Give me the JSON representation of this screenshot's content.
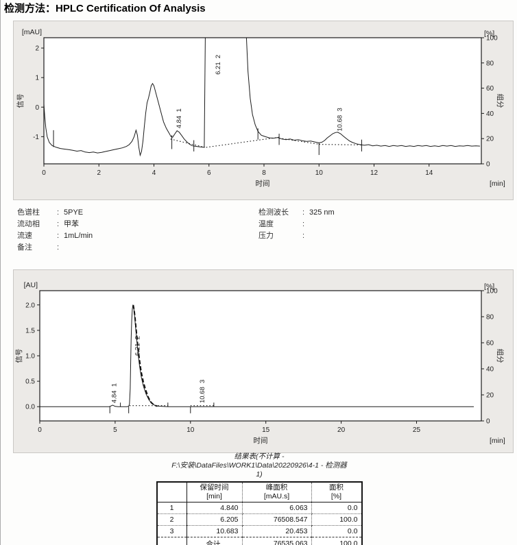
{
  "page": {
    "title": "检测方法：HPLC Certification Of Analysis"
  },
  "params": {
    "left": [
      {
        "label": "色谱柱",
        "value": "5PYE"
      },
      {
        "label": "流动相",
        "value": "甲苯"
      },
      {
        "label": "流速",
        "value": "1mL/min"
      },
      {
        "label": "备注",
        "value": ""
      }
    ],
    "right": [
      {
        "label": "检测波长",
        "value": "325 nm"
      },
      {
        "label": "温度",
        "value": ""
      },
      {
        "label": "压力",
        "value": ""
      }
    ]
  },
  "chart_data": [
    {
      "type": "line",
      "name": "detector-zoom-chromatogram",
      "ylabel_unit": "[mAU]",
      "ylabel": "信号",
      "xlabel": "时间",
      "xunit": "[min]",
      "y2label_unit": "[%]",
      "y2label": "组分",
      "xlim": [
        0,
        15.9
      ],
      "ylim": [
        -1.92,
        2.35
      ],
      "xticks": [
        0,
        2,
        4,
        6,
        8,
        10,
        12,
        14
      ],
      "yticks": [
        {
          "v": -1,
          "label": "-1"
        },
        {
          "v": 0,
          "label": "0"
        },
        {
          "v": 1,
          "label": "1"
        },
        {
          "v": 2,
          "label": "2"
        }
      ],
      "y2ticks": [
        0,
        20,
        40,
        60,
        80,
        100
      ],
      "peaks": [
        {
          "rt": "4.84",
          "num": "1",
          "x": 4.9,
          "y": -0.72
        },
        {
          "rt": "6.21",
          "num": "2",
          "x": 6.32,
          "y": 1.1
        },
        {
          "rt": "10.68",
          "num": "3",
          "x": 10.74,
          "y": -0.82
        }
      ],
      "trace": [
        [
          0,
          0.1
        ],
        [
          0.03,
          -0.3
        ],
        [
          0.07,
          -0.7
        ],
        [
          0.12,
          -1.0
        ],
        [
          0.2,
          -1.2
        ],
        [
          0.3,
          -1.3
        ],
        [
          0.45,
          -1.36
        ],
        [
          0.6,
          -1.4
        ],
        [
          0.75,
          -1.42
        ],
        [
          0.9,
          -1.44
        ],
        [
          1.05,
          -1.46
        ],
        [
          1.2,
          -1.49
        ],
        [
          1.35,
          -1.47
        ],
        [
          1.5,
          -1.52
        ],
        [
          1.65,
          -1.54
        ],
        [
          1.8,
          -1.52
        ],
        [
          1.95,
          -1.55
        ],
        [
          2.1,
          -1.53
        ],
        [
          2.25,
          -1.5
        ],
        [
          2.4,
          -1.47
        ],
        [
          2.55,
          -1.44
        ],
        [
          2.7,
          -1.41
        ],
        [
          2.85,
          -1.38
        ],
        [
          3.0,
          -1.33
        ],
        [
          3.1,
          -1.27
        ],
        [
          3.2,
          -1.16
        ],
        [
          3.28,
          -1.0
        ],
        [
          3.35,
          -0.78
        ],
        [
          3.4,
          -0.95
        ],
        [
          3.45,
          -1.35
        ],
        [
          3.5,
          -1.63
        ],
        [
          3.55,
          -1.5
        ],
        [
          3.6,
          -1.15
        ],
        [
          3.65,
          -0.65
        ],
        [
          3.7,
          -0.2
        ],
        [
          3.75,
          0.15
        ],
        [
          3.8,
          0.3
        ],
        [
          3.85,
          0.5
        ],
        [
          3.9,
          0.72
        ],
        [
          3.95,
          0.8
        ],
        [
          4.0,
          0.72
        ],
        [
          4.05,
          0.55
        ],
        [
          4.15,
          0.2
        ],
        [
          4.25,
          -0.15
        ],
        [
          4.35,
          -0.5
        ],
        [
          4.45,
          -0.72
        ],
        [
          4.55,
          -0.88
        ],
        [
          4.62,
          -1.0
        ],
        [
          4.68,
          -1.02
        ],
        [
          4.75,
          -0.92
        ],
        [
          4.84,
          -0.8
        ],
        [
          4.92,
          -0.85
        ],
        [
          5.0,
          -0.95
        ],
        [
          5.1,
          -1.08
        ],
        [
          5.2,
          -1.18
        ],
        [
          5.3,
          -1.26
        ],
        [
          5.4,
          -1.31
        ],
        [
          5.55,
          -1.33
        ],
        [
          5.7,
          -1.35
        ],
        [
          5.83,
          -1.36
        ],
        [
          5.87,
          2.6
        ],
        [
          7.35,
          2.6
        ],
        [
          7.42,
          1.2
        ],
        [
          7.5,
          0.3
        ],
        [
          7.58,
          -0.25
        ],
        [
          7.68,
          -0.6
        ],
        [
          7.78,
          -0.82
        ],
        [
          7.9,
          -0.95
        ],
        [
          8.05,
          -1.0
        ],
        [
          8.2,
          -1.04
        ],
        [
          8.35,
          -1.05
        ],
        [
          8.5,
          -1.03
        ],
        [
          8.65,
          -1.08
        ],
        [
          8.8,
          -1.1
        ],
        [
          8.95,
          -1.08
        ],
        [
          9.1,
          -1.12
        ],
        [
          9.25,
          -1.1
        ],
        [
          9.4,
          -1.14
        ],
        [
          9.55,
          -1.16
        ],
        [
          9.7,
          -1.15
        ],
        [
          9.85,
          -1.18
        ],
        [
          10.0,
          -1.21
        ],
        [
          10.1,
          -1.19
        ],
        [
          10.2,
          -1.13
        ],
        [
          10.3,
          -1.04
        ],
        [
          10.4,
          -0.97
        ],
        [
          10.5,
          -0.9
        ],
        [
          10.6,
          -0.86
        ],
        [
          10.68,
          -0.85
        ],
        [
          10.78,
          -0.9
        ],
        [
          10.88,
          -0.98
        ],
        [
          11.0,
          -1.07
        ],
        [
          11.1,
          -1.14
        ],
        [
          11.2,
          -1.19
        ],
        [
          11.35,
          -1.24
        ],
        [
          11.5,
          -1.27
        ],
        [
          11.65,
          -1.29
        ],
        [
          11.8,
          -1.27
        ],
        [
          11.95,
          -1.31
        ],
        [
          12.1,
          -1.29
        ],
        [
          12.25,
          -1.32
        ],
        [
          12.4,
          -1.3
        ],
        [
          12.55,
          -1.33
        ],
        [
          12.7,
          -1.3
        ],
        [
          12.85,
          -1.32
        ],
        [
          13.0,
          -1.3
        ],
        [
          13.15,
          -1.33
        ],
        [
          13.3,
          -1.31
        ],
        [
          13.45,
          -1.33
        ],
        [
          13.6,
          -1.3
        ],
        [
          13.75,
          -1.32
        ],
        [
          13.9,
          -1.3
        ],
        [
          14.05,
          -1.33
        ],
        [
          14.2,
          -1.31
        ],
        [
          14.35,
          -1.33
        ],
        [
          14.5,
          -1.3
        ],
        [
          14.65,
          -1.32
        ],
        [
          14.8,
          -1.3
        ],
        [
          14.95,
          -1.33
        ],
        [
          15.1,
          -1.31
        ],
        [
          15.25,
          -1.32
        ],
        [
          15.4,
          -1.3
        ],
        [
          15.55,
          -1.32
        ],
        [
          15.7,
          -1.31
        ],
        [
          15.85,
          -1.32
        ]
      ],
      "baseline_dotted": [
        [
          [
            4.6,
            -1.08
          ],
          [
            5.85,
            -1.36
          ]
        ],
        [
          [
            5.9,
            -1.36
          ],
          [
            8.55,
            -1.02
          ]
        ],
        [
          [
            8.55,
            -1.05
          ],
          [
            9.95,
            -1.25
          ]
        ],
        [
          [
            10.0,
            -1.26
          ],
          [
            11.55,
            -1.28
          ]
        ]
      ],
      "event_ticks": [
        [
          0.35,
          -1.35,
          -0.78
        ],
        [
          4.65,
          -1.42,
          -0.95
        ],
        [
          5.45,
          -1.5,
          -1.12
        ],
        [
          7.78,
          -1.1,
          -0.72
        ],
        [
          8.55,
          -1.28,
          -0.9
        ],
        [
          10.0,
          -1.62,
          -1.2
        ],
        [
          11.55,
          -1.5,
          -1.1
        ]
      ]
    },
    {
      "type": "line",
      "name": "detector-full-scale-chromatogram",
      "ylabel_unit": "[AU]",
      "ylabel": "信号",
      "xlabel": "时间",
      "xunit": "[min]",
      "y2label_unit": "[%]",
      "y2label": "组分",
      "xlim": [
        0,
        29.3
      ],
      "ylim": [
        -0.28,
        2.28
      ],
      "xticks": [
        0,
        5,
        10,
        15,
        20,
        25
      ],
      "yticks": [
        {
          "v": 0,
          "label": "0.0"
        },
        {
          "v": 0.5,
          "label": "0.5"
        },
        {
          "v": 1,
          "label": "1.0"
        },
        {
          "v": 1.5,
          "label": "1.5"
        },
        {
          "v": 2,
          "label": "2.0"
        }
      ],
      "y2ticks": [
        0,
        20,
        40,
        60,
        80,
        100
      ],
      "peaks": [
        {
          "rt": "4.84",
          "num": "1",
          "x": 4.92,
          "y": 0.07
        },
        {
          "rt": "6.21",
          "num": "2",
          "x": 6.45,
          "y": 1.0
        },
        {
          "rt": "10.68",
          "num": "3",
          "x": 10.76,
          "y": 0.07
        }
      ],
      "trace": [
        [
          0,
          0
        ],
        [
          1,
          0
        ],
        [
          2,
          0
        ],
        [
          3,
          0
        ],
        [
          4,
          0
        ],
        [
          4.4,
          0
        ],
        [
          4.6,
          0
        ],
        [
          4.7,
          0.01
        ],
        [
          4.78,
          0.025
        ],
        [
          4.84,
          0.03
        ],
        [
          4.9,
          0.02
        ],
        [
          5.0,
          0.005
        ],
        [
          5.2,
          0
        ],
        [
          5.5,
          0
        ],
        [
          5.8,
          0
        ],
        [
          5.9,
          0.01
        ],
        [
          5.95,
          0.05
        ],
        [
          6.0,
          0.35
        ],
        [
          6.03,
          0.8
        ],
        [
          6.06,
          1.3
        ],
        [
          6.1,
          1.7
        ],
        [
          6.14,
          1.92
        ],
        [
          6.18,
          1.99
        ],
        [
          6.22,
          1.97
        ],
        [
          6.26,
          1.88
        ],
        [
          6.3,
          1.75
        ],
        [
          6.36,
          1.55
        ],
        [
          6.44,
          1.3
        ],
        [
          6.52,
          1.05
        ],
        [
          6.62,
          0.8
        ],
        [
          6.74,
          0.58
        ],
        [
          6.88,
          0.4
        ],
        [
          7.05,
          0.25
        ],
        [
          7.25,
          0.13
        ],
        [
          7.45,
          0.06
        ],
        [
          7.65,
          0.025
        ],
        [
          7.85,
          0.01
        ],
        [
          8.1,
          0.005
        ],
        [
          8.5,
          0
        ],
        [
          9,
          0
        ],
        [
          10,
          0
        ],
        [
          11,
          0
        ],
        [
          12,
          0
        ],
        [
          13,
          0
        ],
        [
          14,
          0
        ],
        [
          15,
          0
        ],
        [
          16,
          0
        ],
        [
          17,
          0
        ],
        [
          18,
          0
        ],
        [
          19,
          0
        ],
        [
          20,
          0
        ],
        [
          21,
          0
        ],
        [
          22,
          0
        ],
        [
          23,
          0
        ],
        [
          24,
          0
        ],
        [
          25,
          0
        ],
        [
          26,
          0
        ],
        [
          27,
          0
        ],
        [
          28,
          0
        ],
        [
          28.8,
          0
        ]
      ],
      "tail_dashed": [
        [
          6.2,
          2.0
        ],
        [
          6.26,
          1.9
        ],
        [
          6.32,
          1.75
        ],
        [
          6.4,
          1.5
        ],
        [
          6.5,
          1.2
        ],
        [
          6.6,
          0.95
        ],
        [
          6.72,
          0.7
        ],
        [
          6.86,
          0.5
        ],
        [
          7.0,
          0.35
        ],
        [
          7.2,
          0.18
        ],
        [
          7.4,
          0.08
        ],
        [
          7.6,
          0.03
        ],
        [
          7.8,
          0.01
        ]
      ],
      "baseline_dotted": [
        [
          [
            5.95,
            0.02
          ],
          [
            8.5,
            0.02
          ]
        ],
        [
          [
            10.0,
            0.02
          ],
          [
            11.55,
            0.02
          ]
        ]
      ],
      "event_ticks": [
        [
          4.65,
          -0.13,
          0.0
        ],
        [
          5.35,
          0.0,
          0.08
        ],
        [
          5.9,
          -0.13,
          0.0
        ],
        [
          8.5,
          0.0,
          0.08
        ],
        [
          10.0,
          -0.13,
          0.0
        ],
        [
          11.55,
          0.0,
          0.08
        ]
      ]
    }
  ],
  "results": {
    "title_lines": [
      "结果表(不计算 -",
      "F:\\安装\\DataFiles\\WORK1\\Data\\20220926\\4-1 - 检测器",
      "1)"
    ],
    "table": {
      "headers": [
        {
          "name": "",
          "unit": ""
        },
        {
          "name": "保留时间",
          "unit": "[min]"
        },
        {
          "name": "峰面积",
          "unit": "[mAU.s]"
        },
        {
          "name": "面积",
          "unit": "[%]"
        }
      ],
      "rows": [
        [
          "1",
          "4.840",
          "6.063",
          "0.0"
        ],
        [
          "2",
          "6.205",
          "76508.547",
          "100.0"
        ],
        [
          "3",
          "10.683",
          "20.453",
          "0.0"
        ]
      ],
      "total": [
        "",
        "合计",
        "76535.063",
        "100.0"
      ]
    }
  }
}
